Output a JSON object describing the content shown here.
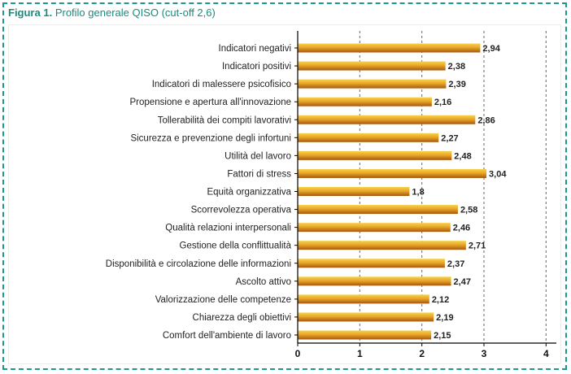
{
  "figure": {
    "label": "Figura 1.",
    "caption": "Profilo generale QISO (cut-off 2,6)"
  },
  "colors": {
    "frame": "#1a9a8c",
    "title": "#1a8b7e",
    "bar_light": "#f7d24a",
    "bar_dark": "#a5570f",
    "grid": "#666666"
  },
  "chart_data": {
    "type": "bar",
    "orientation": "horizontal",
    "title": "Profilo generale QISO (cut-off 2,6)",
    "categories": [
      "Indicatori negativi",
      "Indicatori positivi",
      "Indicatori di malessere psicofisico",
      "Propensione e apertura all'innovazione",
      "Tollerabilità dei compiti lavorativi",
      "Sicurezza e prevenzione degli infortuni",
      "Utilità del lavoro",
      "Fattori di stress",
      "Equità organizzativa",
      "Scorrevolezza operativa",
      "Qualità relazioni interpersonali",
      "Gestione della conflittualità",
      "Disponibilità e circolazione delle informazioni",
      "Ascolto attivo",
      "Valorizzazione delle competenze",
      "Chiarezza degli obiettivi",
      "Comfort dell'ambiente di lavoro"
    ],
    "values": [
      2.94,
      2.38,
      2.39,
      2.16,
      2.86,
      2.27,
      2.48,
      3.04,
      1.8,
      2.58,
      2.46,
      2.71,
      2.37,
      2.47,
      2.12,
      2.19,
      2.15
    ],
    "value_labels": [
      "2,94",
      "2,38",
      "2,39",
      "2,16",
      "2,86",
      "2,27",
      "2,48",
      "3,04",
      "1,8",
      "2,58",
      "2,46",
      "2,71",
      "2,37",
      "2,47",
      "2,12",
      "2,19",
      "2,15"
    ],
    "xlim": [
      0,
      4
    ],
    "xticks": [
      0,
      1,
      2,
      3,
      4
    ],
    "xtick_labels": [
      "0",
      "1",
      "2",
      "3",
      "4"
    ],
    "grid": "vertical dashed"
  }
}
